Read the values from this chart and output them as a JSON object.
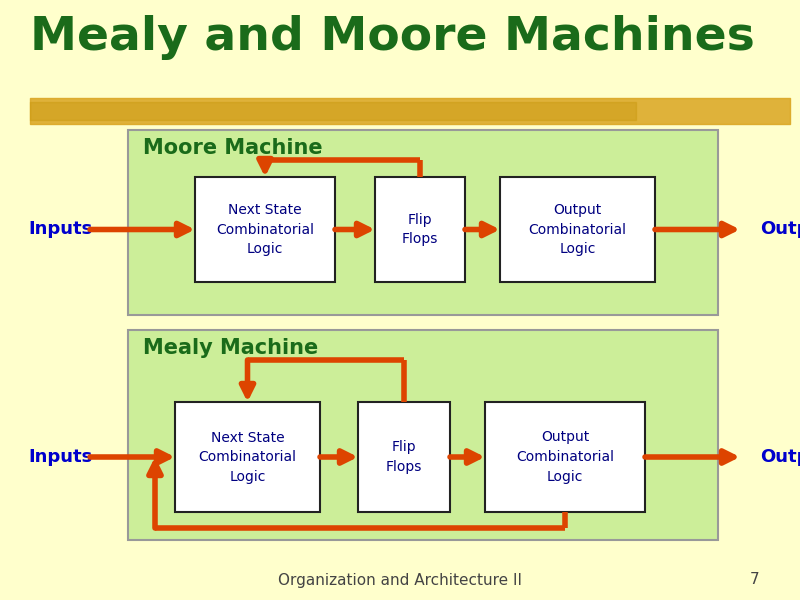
{
  "bg_color": "#FFFFCC",
  "title": "Mealy and Moore Machines",
  "title_color": "#1a6b1a",
  "title_fontsize": 34,
  "title_italic": false,
  "highlight_color": "#DAA520",
  "panel_color": "#CCEE99",
  "arrow_color": "#DD4400",
  "box_color": "#FFFFFF",
  "box_border_color": "#222222",
  "box_text_color": "#000080",
  "label_color": "#0000CC",
  "moore_label": "Moore Machine",
  "mealy_label": "Mealy Machine",
  "section_label_color": "#1a6b1a",
  "inputs_label": "Inputs",
  "outputs_label": "Outputs",
  "box1_text": "Next State\nCombinatorial\nLogic",
  "box2_text": "Flip\nFlops",
  "box3_text": "Output\nCombinatorial\nLogic",
  "footer_text": "Organization and Architecture II",
  "page_num": "7",
  "footer_color": "#444444",
  "footer_fontsize": 11
}
